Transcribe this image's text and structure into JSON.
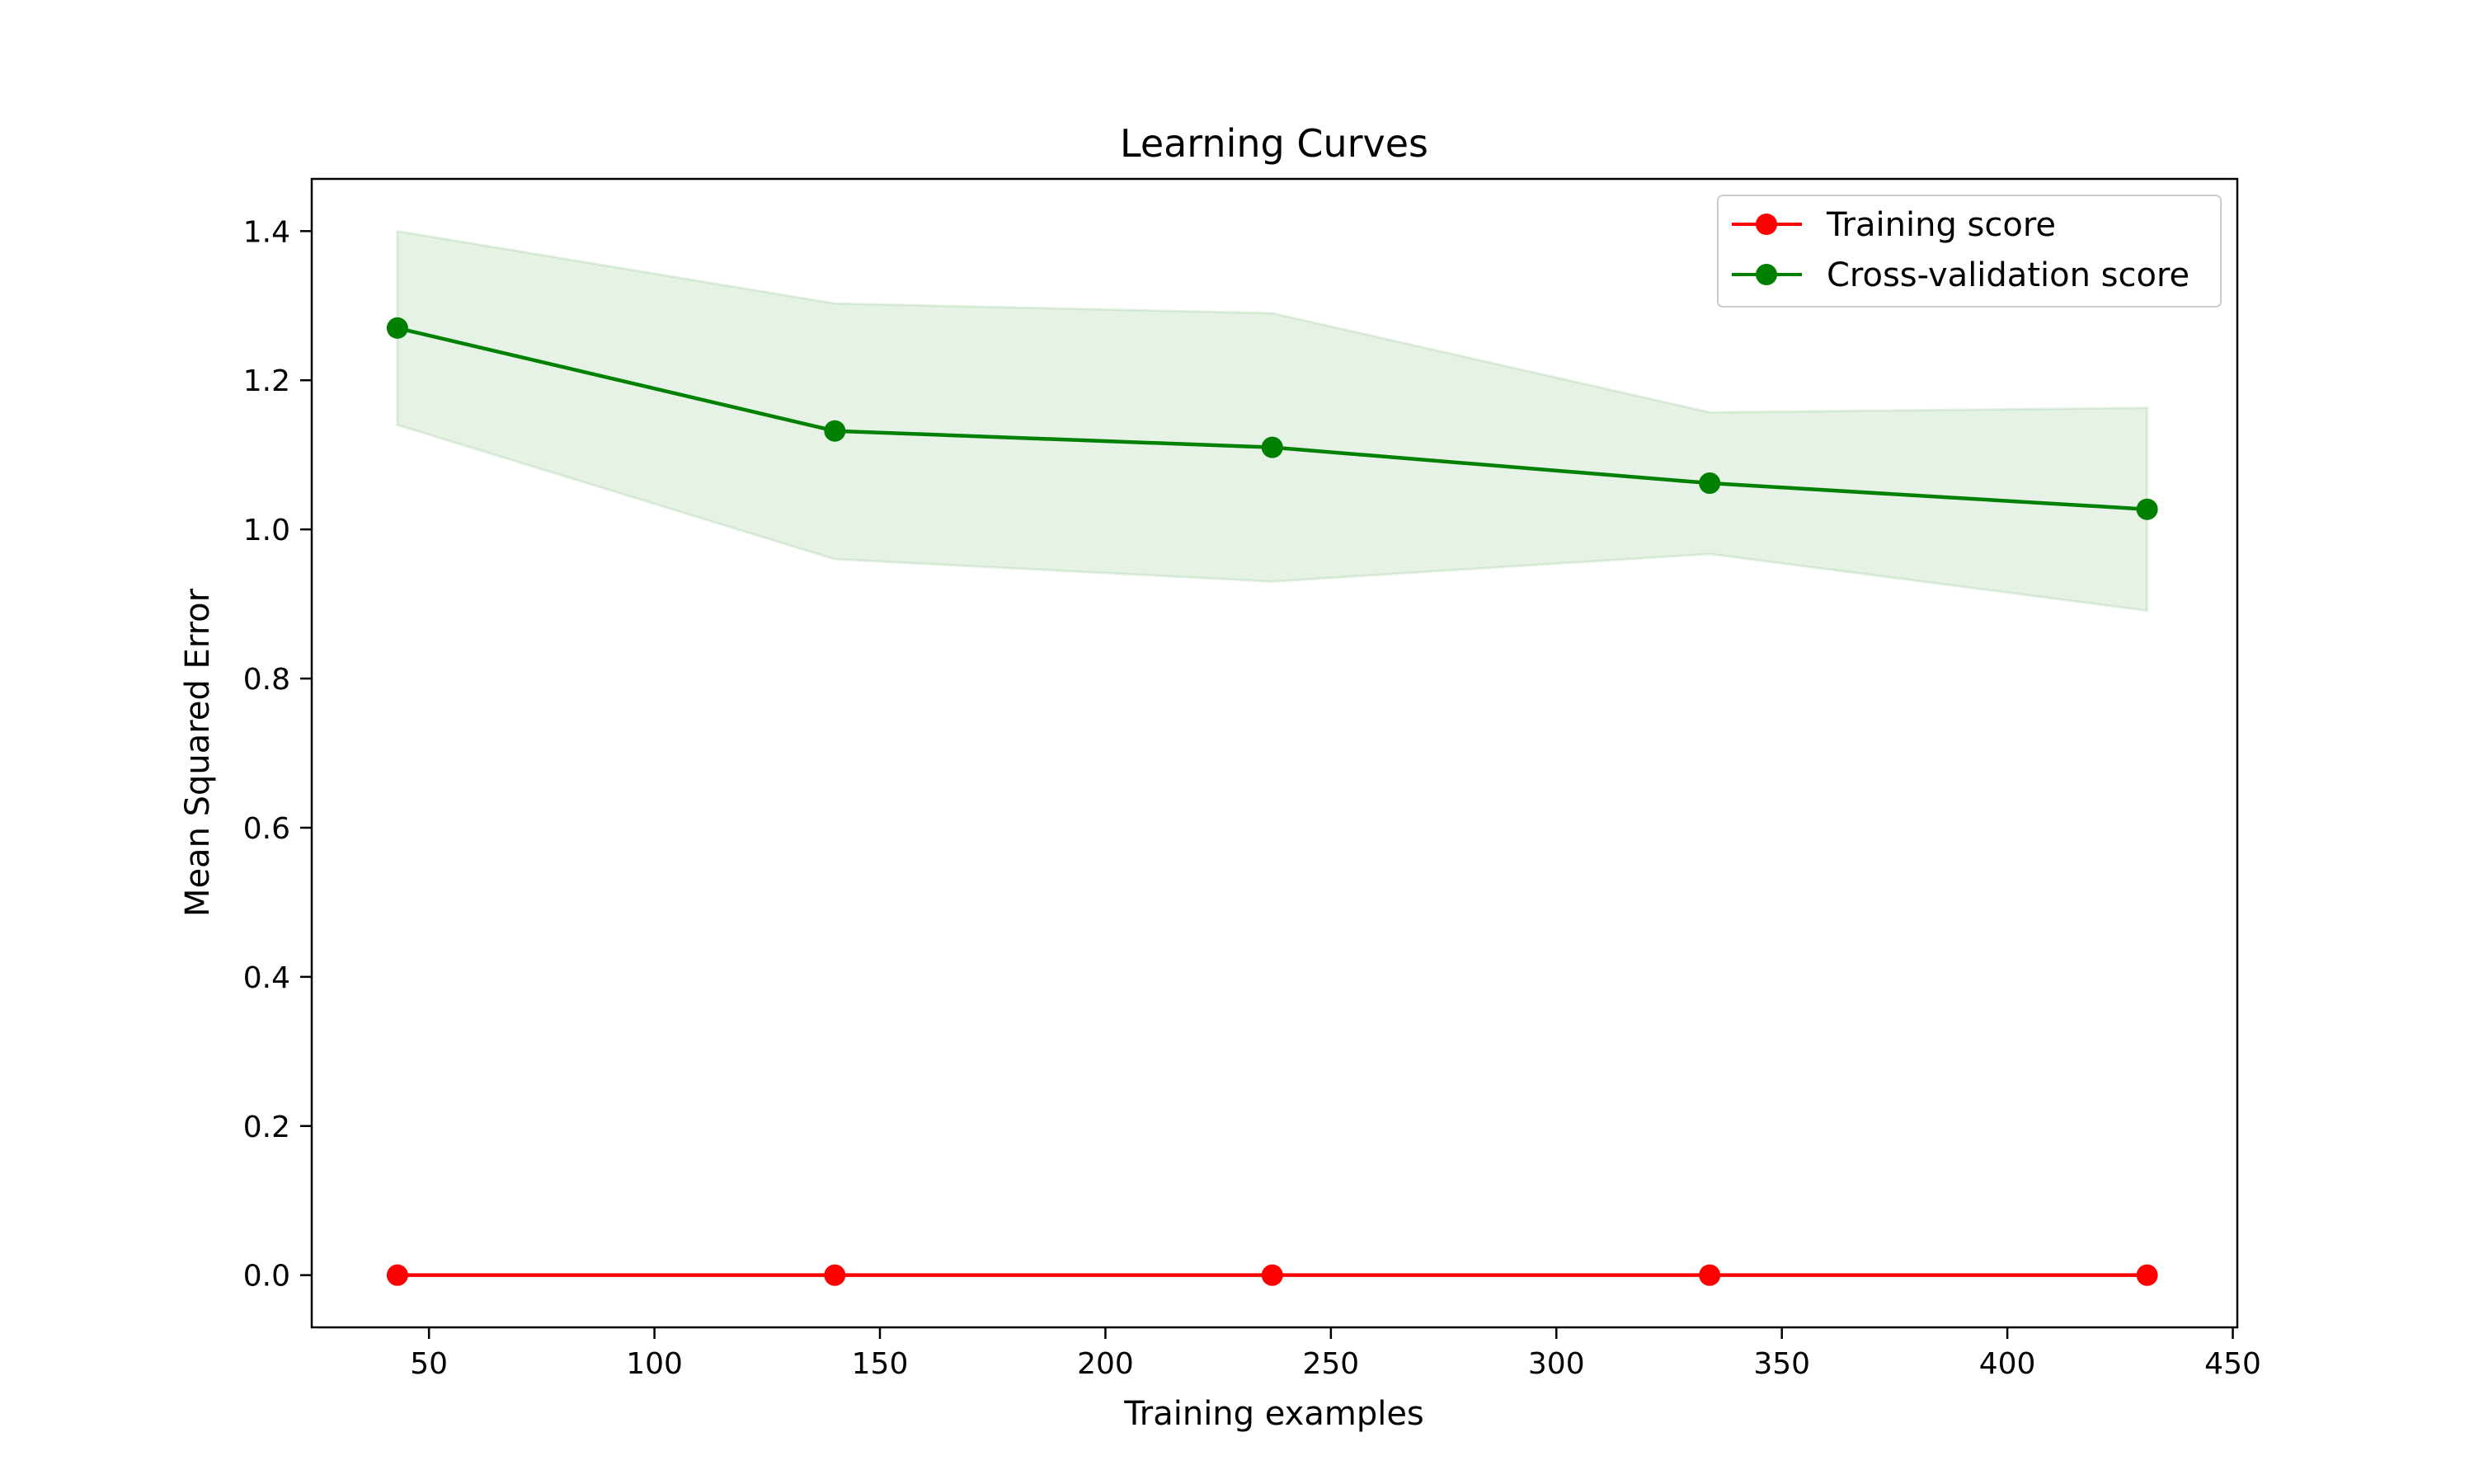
{
  "chart_data": {
    "type": "line",
    "title": "Learning Curves",
    "xlabel": "Training examples",
    "ylabel": "Mean Squared Error",
    "xlim": [
      24,
      451
    ],
    "ylim": [
      -0.07,
      1.47
    ],
    "xticks": [
      50,
      100,
      150,
      200,
      250,
      300,
      350,
      400,
      450
    ],
    "yticks": [
      0.0,
      0.2,
      0.4,
      0.6,
      0.8,
      1.0,
      1.2,
      1.4
    ],
    "x": [
      43,
      140,
      237,
      334,
      431
    ],
    "legend_position": "top-right",
    "grid": false,
    "series": [
      {
        "name": "Training score",
        "color": "#ff0000",
        "values": [
          0.0,
          0.0,
          0.0,
          0.0,
          0.0
        ]
      },
      {
        "name": "Cross-validation score",
        "color": "#008000",
        "values": [
          1.27,
          1.132,
          1.11,
          1.062,
          1.027
        ],
        "band_upper": [
          1.4,
          1.303,
          1.29,
          1.157,
          1.163
        ],
        "band_lower": [
          1.14,
          0.96,
          0.93,
          0.967,
          0.891
        ],
        "band_color": "#008000"
      }
    ]
  }
}
